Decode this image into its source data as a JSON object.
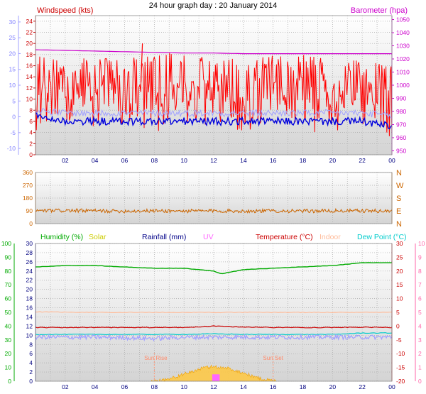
{
  "title": "24 hour graph day : 20 January 2014",
  "chart_data": [
    {
      "type": "line",
      "title": "24 hour graph day : 20 January 2014",
      "ylabel": "Windspeed (kts)",
      "y2label": "Barometer (hpa)",
      "ylim": [
        0,
        25
      ],
      "y_ticks": [
        0,
        2,
        4,
        6,
        8,
        10,
        12,
        14,
        16,
        18,
        20,
        22,
        24
      ],
      "y2lim": [
        947,
        1053
      ],
      "y2_ticks": [
        950,
        960,
        970,
        980,
        990,
        1000,
        1010,
        1020,
        1030,
        1040,
        1050
      ],
      "y3_ticks": [
        -10,
        -5,
        0,
        5,
        10,
        15,
        20,
        25,
        30
      ],
      "x_ticks": [
        "02",
        "04",
        "06",
        "08",
        "10",
        "12",
        "14",
        "16",
        "18",
        "20",
        "22",
        "00"
      ],
      "grid": true,
      "series": [
        {
          "name": "Windspeed (kts)",
          "color": "#ff0000",
          "style": "gust-band",
          "x": [
            0,
            2,
            4,
            6,
            8,
            10,
            12,
            14,
            16,
            18,
            20,
            22,
            24
          ],
          "values": [
            11,
            12,
            11,
            12,
            11,
            11,
            12,
            11,
            11,
            11,
            11,
            12,
            9
          ],
          "range_low": [
            4,
            5,
            4,
            5,
            4,
            5,
            5,
            4,
            5,
            4,
            4,
            5,
            3
          ],
          "range_high": [
            18,
            17,
            18,
            17,
            19,
            18,
            18,
            17,
            18,
            18,
            17,
            17,
            16
          ]
        },
        {
          "name": "Barometer (hpa)",
          "color": "#cc00cc",
          "axis": "right",
          "x": [
            0,
            2,
            4,
            6,
            8,
            10,
            12,
            14,
            16,
            18,
            20,
            22,
            24
          ],
          "values": [
            1027,
            1026.5,
            1026,
            1025.5,
            1025,
            1024.5,
            1024.5,
            1024,
            1024,
            1024,
            1024,
            1024,
            1024
          ]
        },
        {
          "color": "#0000dd",
          "x": [
            0,
            2,
            4,
            6,
            8,
            10,
            12,
            14,
            16,
            18,
            20,
            22,
            24
          ],
          "values": [
            7,
            6,
            6,
            6,
            6,
            6,
            6,
            6,
            6,
            6,
            6,
            6,
            5
          ]
        },
        {
          "color": "#a0a0ff",
          "x": [
            0,
            2,
            4,
            6,
            8,
            10,
            12,
            14,
            16,
            18,
            20,
            22,
            24
          ],
          "values": [
            8,
            7.5,
            7.5,
            7.5,
            7.5,
            7.5,
            7.5,
            7.5,
            7.5,
            7.5,
            7.5,
            7.5,
            7
          ]
        }
      ]
    },
    {
      "type": "line",
      "ylim": [
        0,
        360
      ],
      "y_ticks": [
        0,
        90,
        180,
        270,
        360
      ],
      "y2_ticks": [
        "N",
        "E",
        "S",
        "W",
        "N"
      ],
      "x_ticks": [],
      "grid": true,
      "series": [
        {
          "color": "#cc6600",
          "x": [
            0,
            2,
            4,
            6,
            8,
            10,
            12,
            14,
            16,
            18,
            20,
            22,
            24
          ],
          "values": [
            90,
            92,
            90,
            88,
            90,
            88,
            90,
            88,
            90,
            88,
            90,
            90,
            88
          ]
        }
      ]
    },
    {
      "type": "line",
      "legend": [
        {
          "label": "Humidity (%)",
          "color": "#00aa00"
        },
        {
          "label": "Solar",
          "color": "#cccc00"
        },
        {
          "label": "Rainfall (mm)",
          "color": "#000088"
        },
        {
          "label": "UV",
          "color": "#ff66ff"
        },
        {
          "label": "Temperature (°C)",
          "color": "#cc0000"
        },
        {
          "label": "Indoor",
          "color": "#ffbb99"
        },
        {
          "label": "Dew Point (°C)",
          "color": "#00cccc"
        }
      ],
      "y_ticks_humidity": [
        0,
        10,
        20,
        30,
        40,
        50,
        60,
        70,
        80,
        90,
        100
      ],
      "y_ticks_rain": [
        0,
        2,
        4,
        6,
        8,
        10,
        12,
        14,
        16,
        18,
        20,
        22,
        24,
        26,
        28,
        30
      ],
      "y_ticks_temp": [
        -20,
        -15,
        -10,
        -5,
        0,
        5,
        10,
        15,
        20,
        25,
        30
      ],
      "y_ticks_uv": [
        0,
        1,
        2,
        3,
        4,
        5,
        6,
        7,
        8,
        9,
        10
      ],
      "x_ticks": [
        "02",
        "04",
        "06",
        "08",
        "10",
        "12",
        "14",
        "16",
        "18",
        "20",
        "22",
        "00"
      ],
      "annotations": [
        "Sun Rise",
        "Sun Set"
      ],
      "sunrise_hour": 8,
      "sunset_hour": 16,
      "grid": true,
      "series": [
        {
          "name": "Humidity (%)",
          "color": "#00aa00",
          "axis": "humidity",
          "x": [
            0,
            2,
            4,
            6,
            8,
            10,
            12,
            12.5,
            13,
            14,
            16,
            18,
            20,
            21,
            22,
            24
          ],
          "values": [
            83,
            84,
            84,
            83,
            82,
            82,
            80,
            78,
            79,
            81,
            82,
            83,
            84,
            85,
            86,
            86
          ]
        },
        {
          "name": "Indoor",
          "color": "#ffbb99",
          "axis": "temp",
          "x": [
            0,
            4,
            8,
            12,
            16,
            20,
            24
          ],
          "values": [
            5.2,
            5,
            5,
            5,
            5,
            5,
            5
          ]
        },
        {
          "name": "Temperature (°C)",
          "color": "#cc0000",
          "axis": "temp",
          "x": [
            0,
            2,
            4,
            6,
            8,
            10,
            12,
            14,
            16,
            18,
            20,
            22,
            24
          ],
          "values": [
            -0.5,
            -0.5,
            -0.5,
            -0.5,
            -0.5,
            -0.5,
            0,
            -0.3,
            -0.5,
            -0.5,
            -0.5,
            -0.4,
            -0.5
          ]
        },
        {
          "name": "Dew Point (°C)",
          "color": "#00cccc",
          "axis": "temp",
          "x": [
            0,
            2,
            4,
            6,
            8,
            10,
            12,
            14,
            16,
            18,
            20,
            22,
            24
          ],
          "values": [
            -3,
            -3,
            -3,
            -3,
            -3,
            -3,
            -2.8,
            -3,
            -3,
            -3,
            -3,
            -2.5,
            -2.5
          ]
        },
        {
          "color": "#a0a0ff",
          "axis": "temp",
          "x": [
            0,
            2,
            4,
            6,
            8,
            10,
            12,
            14,
            16,
            18,
            20,
            22,
            24
          ],
          "values": [
            -4,
            -4,
            -4,
            -4.2,
            -4.5,
            -4,
            -4,
            -4,
            -4,
            -4,
            -4,
            -4,
            -4
          ]
        },
        {
          "name": "Solar",
          "color": "#ffc840",
          "axis": "rain",
          "style": "area",
          "x": [
            7.8,
            9,
            10,
            11,
            11.5,
            12,
            12.5,
            13,
            14,
            15,
            16.2
          ],
          "values": [
            0,
            0.5,
            1.5,
            2.6,
            3.0,
            3.2,
            3.0,
            2.8,
            1.8,
            0.7,
            0
          ]
        },
        {
          "name": "UV",
          "color": "#ff66ff",
          "axis": "uv",
          "style": "bar",
          "x": [
            11.9,
            12.4
          ],
          "values": [
            0.5,
            0.5
          ]
        }
      ]
    }
  ]
}
